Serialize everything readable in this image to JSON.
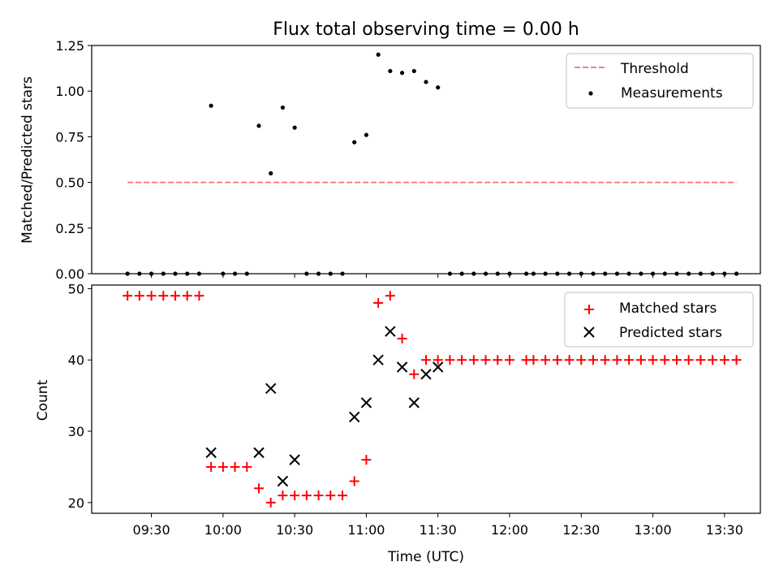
{
  "chart_data": [
    {
      "type": "scatter",
      "title": "Flux total observing time = 0.00 h",
      "xlabel": "",
      "ylabel": "Matched/Predicted stars",
      "ylim": [
        0,
        1.25
      ],
      "yticks": [
        "0.00",
        "0.25",
        "0.50",
        "0.75",
        "1.00",
        "1.25"
      ],
      "legend_position": "upper right",
      "threshold": {
        "name": "Threshold",
        "value": 0.5,
        "x_start": "09:20",
        "x_end": "13:35",
        "color": "#ff7f7f",
        "style": "dashed"
      },
      "series": [
        {
          "name": "Measurements",
          "color": "#000000",
          "marker": "dot",
          "x": [
            "09:20",
            "09:25",
            "09:30",
            "09:35",
            "09:40",
            "09:45",
            "09:50",
            "09:55",
            "10:00",
            "10:05",
            "10:10",
            "10:15",
            "10:20",
            "10:25",
            "10:30",
            "10:35",
            "10:40",
            "10:45",
            "10:50",
            "10:55",
            "11:00",
            "11:05",
            "11:10",
            "11:15",
            "11:20",
            "11:25",
            "11:30",
            "11:35",
            "11:40",
            "11:45",
            "11:50",
            "11:55",
            "12:00",
            "12:07",
            "12:10",
            "12:15",
            "12:20",
            "12:25",
            "12:30",
            "12:35",
            "12:40",
            "12:45",
            "12:50",
            "12:55",
            "13:00",
            "13:05",
            "13:10",
            "13:15",
            "13:20",
            "13:25",
            "13:30",
            "13:35"
          ],
          "y": [
            0,
            0,
            0,
            0,
            0,
            0,
            0,
            0.92,
            0,
            0,
            0,
            0.81,
            0.55,
            0.91,
            0.8,
            0,
            0,
            0,
            0,
            0.72,
            0.76,
            1.2,
            1.11,
            1.1,
            1.11,
            1.05,
            1.02,
            0,
            0,
            0,
            0,
            0,
            0,
            0,
            0,
            0,
            0,
            0,
            0,
            0,
            0,
            0,
            0,
            0,
            0,
            0,
            0,
            0,
            0,
            0,
            0,
            0
          ]
        }
      ]
    },
    {
      "type": "scatter",
      "title": "",
      "xlabel": "Time (UTC)",
      "ylabel": "Count",
      "ylim": [
        18.5,
        50.5
      ],
      "yticks": [
        "20",
        "30",
        "40",
        "50"
      ],
      "xlim": [
        "09:05",
        "13:45"
      ],
      "xticks": [
        "09:30",
        "10:00",
        "10:30",
        "11:00",
        "11:30",
        "12:00",
        "12:30",
        "13:00",
        "13:30"
      ],
      "legend_position": "upper right",
      "series": [
        {
          "name": "Matched stars",
          "color": "#ff0000",
          "marker": "plus",
          "x": [
            "09:20",
            "09:25",
            "09:30",
            "09:35",
            "09:40",
            "09:45",
            "09:50",
            "09:55",
            "10:00",
            "10:05",
            "10:10",
            "10:15",
            "10:20",
            "10:25",
            "10:30",
            "10:35",
            "10:40",
            "10:45",
            "10:50",
            "10:55",
            "11:00",
            "11:05",
            "11:10",
            "11:15",
            "11:20",
            "11:25",
            "11:30",
            "11:35",
            "11:40",
            "11:45",
            "11:50",
            "11:55",
            "12:00",
            "12:07",
            "12:10",
            "12:15",
            "12:20",
            "12:25",
            "12:30",
            "12:35",
            "12:40",
            "12:45",
            "12:50",
            "12:55",
            "13:00",
            "13:05",
            "13:10",
            "13:15",
            "13:20",
            "13:25",
            "13:30",
            "13:35"
          ],
          "y": [
            49,
            49,
            49,
            49,
            49,
            49,
            49,
            25,
            25,
            25,
            25,
            22,
            20,
            21,
            21,
            21,
            21,
            21,
            21,
            23,
            26,
            48,
            49,
            43,
            38,
            40,
            40,
            40,
            40,
            40,
            40,
            40,
            40,
            40,
            40,
            40,
            40,
            40,
            40,
            40,
            40,
            40,
            40,
            40,
            40,
            40,
            40,
            40,
            40,
            40,
            40,
            40
          ]
        },
        {
          "name": "Predicted stars",
          "color": "#000000",
          "marker": "x",
          "x": [
            "09:55",
            "10:15",
            "10:20",
            "10:25",
            "10:30",
            "10:55",
            "11:00",
            "11:05",
            "11:10",
            "11:15",
            "11:20",
            "11:25",
            "11:30"
          ],
          "y": [
            27,
            27,
            36,
            23,
            26,
            32,
            34,
            40,
            44,
            39,
            34,
            38,
            39
          ]
        }
      ]
    }
  ]
}
